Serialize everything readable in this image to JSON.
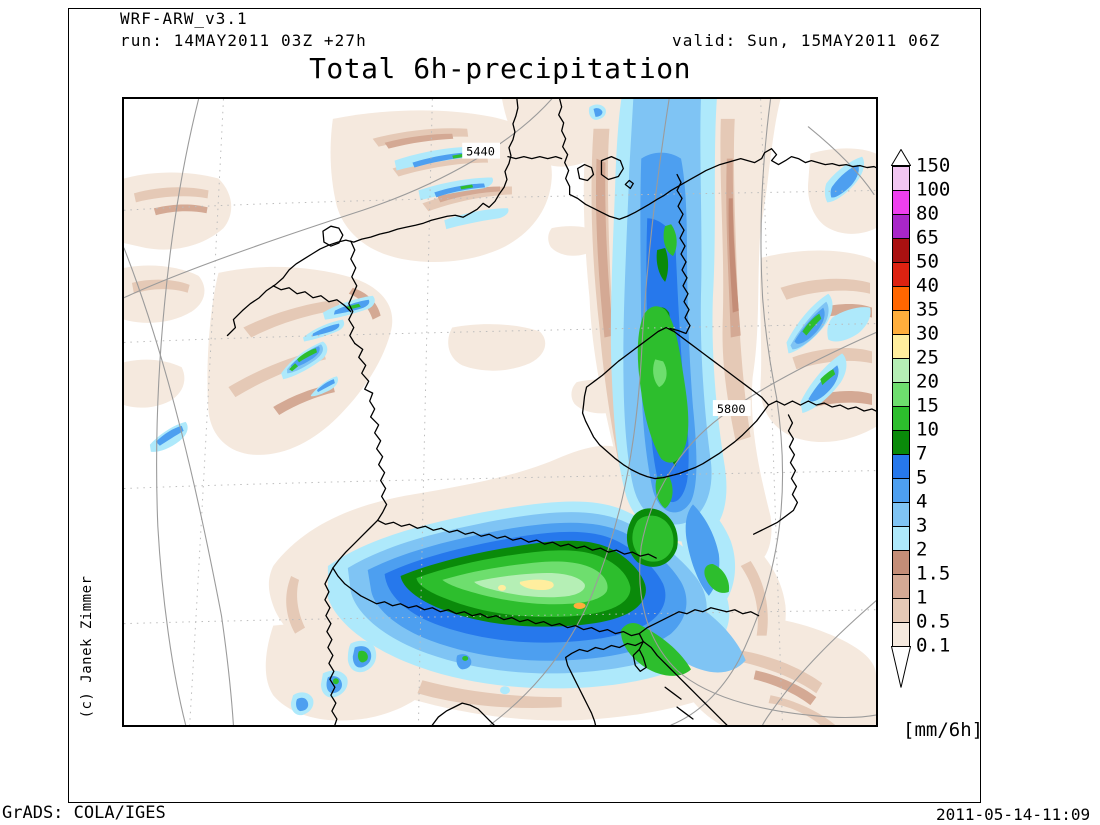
{
  "header": {
    "model": "WRF-ARW_v3.1",
    "run": "run: 14MAY2011 03Z +27h",
    "valid": "valid: Sun, 15MAY2011 06Z"
  },
  "title": "Total 6h-precipitation",
  "credit": "(c) Janek Zimmer",
  "footer": {
    "left": "GrADS: COLA/IGES",
    "right": "2011-05-14-11:09"
  },
  "colorbar": {
    "units": "[mm/6h]",
    "levels": [
      "150",
      "100",
      "80",
      "65",
      "50",
      "40",
      "35",
      "30",
      "25",
      "20",
      "15",
      "10",
      "7",
      "5",
      "4",
      "3",
      "2",
      "1.5",
      "1",
      "0.5",
      "0.1"
    ],
    "colors": [
      "#F2C6F2",
      "#EE3FEE",
      "#A826C8",
      "#AA1111",
      "#DD2211",
      "#FF6600",
      "#FFAE3C",
      "#FFEE9E",
      "#B5EFB5",
      "#6EDE6E",
      "#2DBE2D",
      "#0A8A0A",
      "#2678EC",
      "#4D9FF0",
      "#7FC4F4",
      "#AEE9FB",
      "#C48D77",
      "#D4A994",
      "#E5C9B6",
      "#F5E9DE"
    ]
  },
  "map": {
    "contour_labels": [
      "5440",
      "5800"
    ]
  },
  "chart_data": {
    "type": "heatmap",
    "title": "Total 6h-precipitation",
    "units": "mm/6h",
    "legend_levels": [
      0.1,
      0.5,
      1,
      1.5,
      2,
      3,
      4,
      5,
      7,
      10,
      15,
      20,
      25,
      30,
      35,
      40,
      50,
      65,
      80,
      100,
      150
    ],
    "palette_top_to_bottom": [
      "#F2C6F2",
      "#EE3FEE",
      "#A826C8",
      "#AA1111",
      "#DD2211",
      "#FF6600",
      "#FFAE3C",
      "#FFEE9E",
      "#B5EFB5",
      "#6EDE6E",
      "#2DBE2D",
      "#0A8A0A",
      "#2678EC",
      "#4D9FF0",
      "#7FC4F4",
      "#AEE9FB",
      "#C48D77",
      "#D4A994",
      "#E5C9B6",
      "#F5E9DE"
    ],
    "height_contour_labels": [
      5440,
      5800
    ],
    "legend_position": "right",
    "notes": "Filled 6h precipitation contours over central Europe with gray geopotential-height contour lines"
  }
}
